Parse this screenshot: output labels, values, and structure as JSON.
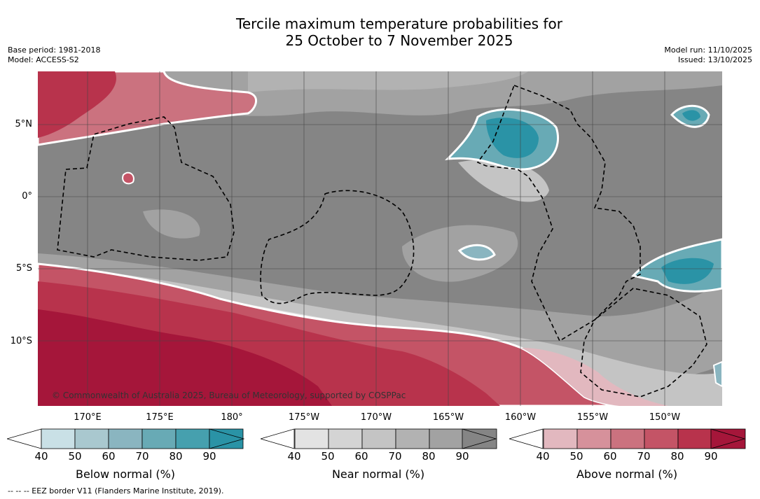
{
  "title_line1": "Tercile maximum temperature probabilities for",
  "title_line2": "25 October to 7 November 2025",
  "base_period": "Base period: 1981-2018",
  "model": "Model: ACCESS-S2",
  "model_run": "Model run: 11/10/2025",
  "issued": "Issued: 13/10/2025",
  "lat_labels": [
    "5°N",
    "0°",
    "5°S",
    "10°S"
  ],
  "lon_labels": [
    "170°E",
    "175°E",
    "180°",
    "175°W",
    "170°W",
    "165°W",
    "160°W",
    "155°W",
    "150°W"
  ],
  "copyright": "© Commonwealth of Australia 2025, Bureau of Meteorology, supported by COSPPac",
  "footnote": "--  --  -- EEZ border V11 (Flanders Marine Institute, 2019).",
  "colorbars": {
    "below": {
      "title": "Below normal (%)",
      "ticks": [
        "40",
        "50",
        "60",
        "70",
        "80",
        "90"
      ],
      "colors": [
        "#c9e0e6",
        "#a9c8cf",
        "#8ab5c0",
        "#68aab5",
        "#46a0ae",
        "#2a93a6"
      ]
    },
    "near": {
      "title": "Near normal (%)",
      "ticks": [
        "40",
        "50",
        "60",
        "70",
        "80",
        "90"
      ],
      "colors": [
        "#e3e3e3",
        "#d4d4d4",
        "#c4c4c4",
        "#b2b2b2",
        "#a2a2a2",
        "#858585"
      ]
    },
    "above": {
      "title": "Above normal (%)",
      "ticks": [
        "40",
        "50",
        "60",
        "70",
        "80",
        "90"
      ],
      "colors": [
        "#e2b8bf",
        "#d6919b",
        "#cb727f",
        "#c45466",
        "#b8334c",
        "#a5163a"
      ]
    }
  }
}
